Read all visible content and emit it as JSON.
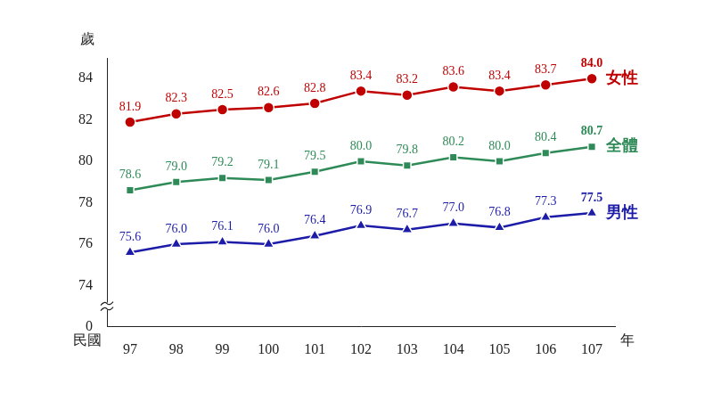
{
  "chart_data": {
    "type": "line",
    "y_label": "歲",
    "x_label": "年",
    "x_label_left": "民國",
    "categories": [
      "97",
      "98",
      "99",
      "100",
      "101",
      "102",
      "103",
      "104",
      "105",
      "106",
      "107"
    ],
    "series": [
      {
        "name": "女性",
        "color": "#c00000",
        "marker": "circle",
        "values": [
          81.9,
          82.3,
          82.5,
          82.6,
          82.8,
          83.4,
          83.2,
          83.6,
          83.4,
          83.7,
          84.0
        ],
        "value_labels": [
          "81.9",
          "82.3",
          "82.5",
          "82.6",
          "82.8",
          "83.4",
          "83.2",
          "83.6",
          "83.4",
          "83.7",
          "84.0"
        ]
      },
      {
        "name": "全體",
        "color": "#2e8b57",
        "marker": "square",
        "values": [
          78.6,
          79.0,
          79.2,
          79.1,
          79.5,
          80.0,
          79.8,
          80.2,
          80.0,
          80.4,
          80.7
        ],
        "value_labels": [
          "78.6",
          "79.0",
          "79.2",
          "79.1",
          "79.5",
          "80.0",
          "79.8",
          "80.2",
          "80.0",
          "80.4",
          "80.7"
        ]
      },
      {
        "name": "男性",
        "color": "#1c1ca8",
        "marker": "triangle",
        "values": [
          75.6,
          76.0,
          76.1,
          76.0,
          76.4,
          76.9,
          76.7,
          77.0,
          76.8,
          77.3,
          77.5
        ],
        "value_labels": [
          "75.6",
          "76.0",
          "76.1",
          "76.0",
          "76.4",
          "76.9",
          "76.7",
          "77.0",
          "76.8",
          "77.3",
          "77.5"
        ]
      }
    ],
    "ylim": [
      0,
      85
    ],
    "yticks": [
      0,
      74,
      76,
      78,
      80,
      82,
      84
    ],
    "grid": false,
    "data_labels": true
  }
}
